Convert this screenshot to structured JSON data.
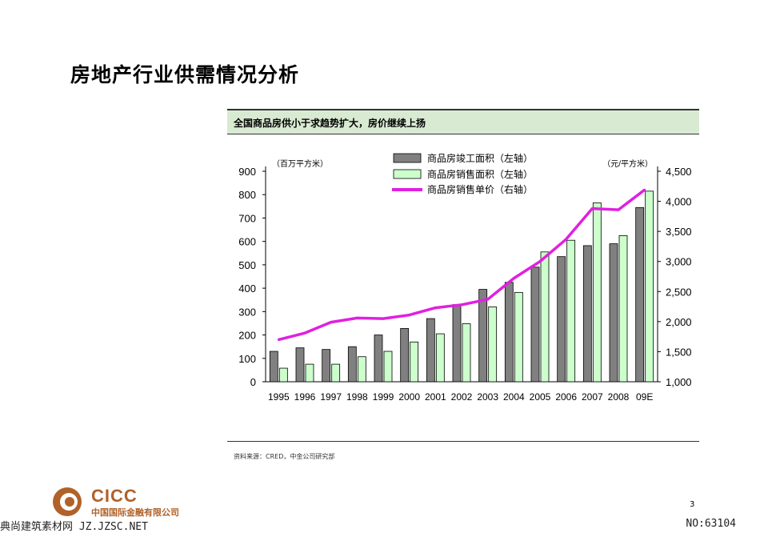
{
  "page": {
    "title": "房地产行业供需情况分析",
    "chart_header": "全国商品房供小于求趋势扩大，房价继续上扬",
    "source_note": "资料来源：CRED，中金公司研究部",
    "page_number": "3",
    "logo_name": "CICC",
    "logo_sub": "中国国际金融有限公司",
    "watermark_left": "典尚建筑素材网 JZ.JZSC.NET",
    "watermark_right": "NO:63104",
    "colors": {
      "completed": "#808080",
      "sold": "#ccffcc",
      "price": "#e020e0",
      "header_bg": "#d9ead3",
      "logo": "#b0622a"
    }
  },
  "chart_data": {
    "type": "bar",
    "categories": [
      "1995",
      "1996",
      "1997",
      "1998",
      "1999",
      "2000",
      "2001",
      "2002",
      "2003",
      "2004",
      "2005",
      "2006",
      "2007",
      "2008",
      "09E"
    ],
    "left_unit": "（百万平方米）",
    "right_unit": "（元/平方米）",
    "left_axis": {
      "min": 0,
      "max": 900,
      "ticks": [
        "0",
        "100",
        "200",
        "300",
        "400",
        "500",
        "600",
        "700",
        "800",
        "900"
      ]
    },
    "right_axis": {
      "min": 1000,
      "max": 4500,
      "ticks": [
        "1,000",
        "1,500",
        "2,000",
        "2,500",
        "3,000",
        "3,500",
        "4,000",
        "4,500"
      ]
    },
    "series": [
      {
        "name": "商品房竣工面积（左轴）",
        "kind": "bar",
        "axis": "left",
        "values": [
          130,
          145,
          138,
          150,
          200,
          228,
          270,
          330,
          395,
          425,
          490,
          535,
          582,
          590,
          745
        ]
      },
      {
        "name": "商品房销售面积（左轴）",
        "kind": "bar",
        "axis": "left",
        "values": [
          58,
          75,
          75,
          107,
          130,
          170,
          205,
          248,
          320,
          382,
          555,
          605,
          765,
          625,
          815
        ]
      },
      {
        "name": "商品房销售单价（右轴）",
        "kind": "line",
        "axis": "right",
        "values": [
          1700,
          1810,
          1990,
          2060,
          2050,
          2110,
          2230,
          2280,
          2370,
          2720,
          3000,
          3370,
          3880,
          3860,
          4190
        ]
      }
    ],
    "legend_position": "top-center",
    "grid": false
  }
}
